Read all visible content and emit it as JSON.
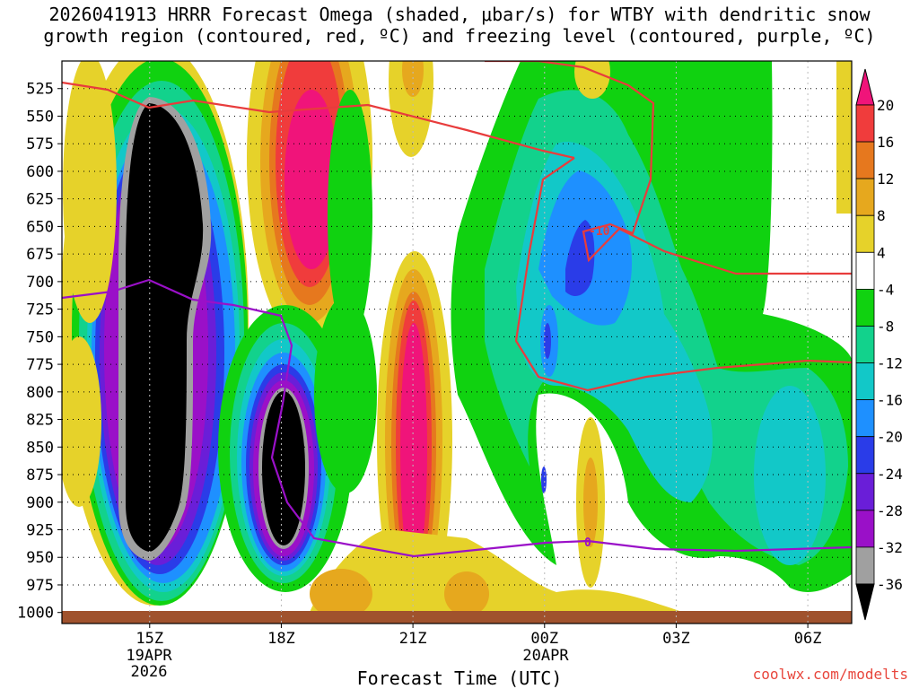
{
  "title_line1": "2026041913 HRRR Forecast Omega (shaded, μbar/s) for WTBY with dendritic snow",
  "title_line2": "growth region (contoured, red, ºC) and freezing level (contoured, purple, ºC)",
  "x_axis_title": "Forecast Time (UTC)",
  "credit": "coolwx.com/modelts",
  "x_date_labels": [
    "19APR",
    "2026",
    "20APR"
  ],
  "chart_data": {
    "type": "heatmap",
    "y_ticks": [
      525,
      550,
      575,
      600,
      625,
      650,
      675,
      700,
      725,
      750,
      775,
      800,
      825,
      850,
      875,
      900,
      925,
      950,
      975,
      1000
    ],
    "y_range": [
      500,
      1010
    ],
    "y_scale": "linear-inverted",
    "x_ticks": [
      "15Z",
      "18Z",
      "21Z",
      "00Z",
      "03Z",
      "06Z"
    ],
    "x_range_hours": [
      13.0,
      31.0
    ],
    "grid": true,
    "colorbar": {
      "levels": [
        -36,
        -32,
        -28,
        -24,
        -20,
        -16,
        -12,
        -8,
        -4,
        4,
        8,
        12,
        16,
        20
      ],
      "tick_labels": [
        "20",
        "16",
        "12",
        "8",
        "4",
        "-4",
        "-8",
        "-12",
        "-16",
        "-20",
        "-24",
        "-28",
        "-32",
        "-36"
      ],
      "colors": [
        "#000000",
        "#a0a0a0",
        "#9a10c8",
        "#6a1ed8",
        "#2a3ce8",
        "#1e90ff",
        "#12c8c8",
        "#12d28c",
        "#10d210",
        "#ffffff",
        "#e6d22a",
        "#e6a81e",
        "#e6781e",
        "#f03c3c",
        "#f0147a"
      ]
    },
    "contours": [
      {
        "label": "-10",
        "color": "#e83c3c"
      },
      {
        "label": "0",
        "color": "#9a10c8"
      }
    ],
    "features": [
      {
        "time_h": 15.0,
        "p_top": 530,
        "p_bottom": 930,
        "omega_min": "< -36"
      },
      {
        "time_h": 18.0,
        "p_top": 722,
        "p_bottom": 925,
        "omega_min": "< -36"
      },
      {
        "time_h": 19.0,
        "p_top": 505,
        "p_bottom": 650,
        "omega_max": "> 20"
      },
      {
        "time_h": 21.0,
        "p_top": 695,
        "p_bottom": 945,
        "omega_max": "> 20"
      },
      {
        "time_h": 24.6,
        "p_top": 620,
        "p_bottom": 680,
        "omega_min": -24
      }
    ]
  }
}
